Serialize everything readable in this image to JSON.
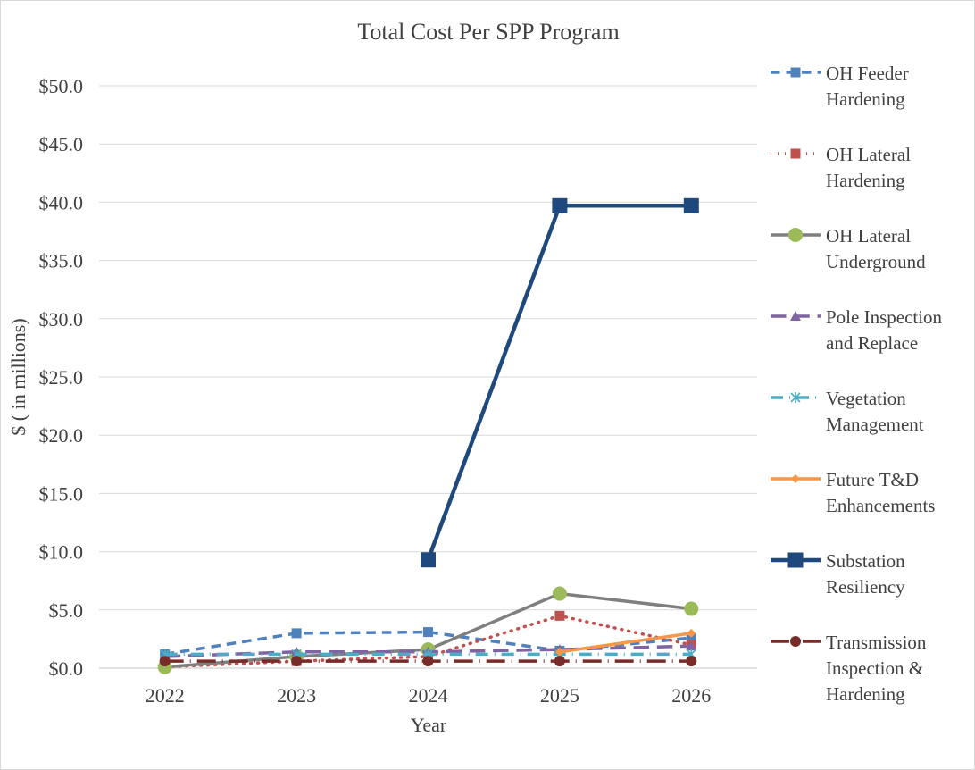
{
  "chart_data": {
    "type": "line",
    "title": "Total Cost Per SPP Program",
    "xlabel": "Year",
    "ylabel": "$ ( in millions)",
    "categories": [
      "2022",
      "2023",
      "2024",
      "2025",
      "2026"
    ],
    "ylim": [
      0,
      50
    ],
    "ytick_labels": [
      "$0.0",
      "$5.0",
      "$10.0",
      "$15.0",
      "$20.0",
      "$25.0",
      "$30.0",
      "$35.0",
      "$40.0",
      "$45.0",
      "$50.0"
    ],
    "grid": true,
    "legend_position": "right",
    "series": [
      {
        "name": "OH Feeder Hardening",
        "legend_lines": [
          "OH Feeder",
          "Hardening"
        ],
        "values": [
          1.2,
          3.0,
          3.1,
          1.5,
          2.6
        ],
        "color": "#4f81bd",
        "dash": "dash",
        "marker": "square"
      },
      {
        "name": "OH Lateral Hardening",
        "legend_lines": [
          "OH Lateral",
          "Hardening"
        ],
        "values": [
          0.1,
          0.6,
          1.0,
          4.5,
          2.0
        ],
        "color": "#c0504d",
        "dash": "dot",
        "marker": "square"
      },
      {
        "name": "OH Lateral Underground",
        "legend_lines": [
          "OH Lateral",
          "Underground"
        ],
        "values": [
          0.1,
          1.0,
          1.6,
          6.4,
          5.1
        ],
        "color": "#7f7f7f",
        "dash": "solid",
        "marker": "circle",
        "marker_color": "#9bbb59"
      },
      {
        "name": "Pole Inspection and Replace",
        "legend_lines": [
          "Pole Inspection",
          "and Replace"
        ],
        "values": [
          1.0,
          1.4,
          1.4,
          1.6,
          1.9
        ],
        "color": "#8064a2",
        "dash": "longdash",
        "marker": "triangle"
      },
      {
        "name": "Vegetation Management",
        "legend_lines": [
          "Vegetation",
          "Management"
        ],
        "values": [
          1.2,
          1.2,
          1.2,
          1.2,
          1.2
        ],
        "color": "#4bacc6",
        "dash": "dashdot",
        "marker": "star"
      },
      {
        "name": "Future T&D Enhancements",
        "legend_lines": [
          "Future T&D",
          "Enhancements"
        ],
        "values": [
          null,
          null,
          null,
          1.4,
          3.0
        ],
        "color": "#f79646",
        "dash": "solid",
        "marker": "diamond"
      },
      {
        "name": "Substation Resiliency",
        "legend_lines": [
          "Substation",
          "Resiliency"
        ],
        "values": [
          null,
          null,
          9.3,
          39.7,
          39.7
        ],
        "color": "#1f497d",
        "dash": "solid",
        "marker": "square_large"
      },
      {
        "name": "Transmission Inspection & Hardening",
        "legend_lines": [
          "Transmission",
          "Inspection &",
          "Hardening"
        ],
        "values": [
          0.6,
          0.6,
          0.6,
          0.6,
          0.6
        ],
        "color": "#772c2a",
        "dash": "longdashdot",
        "marker": "circle"
      }
    ]
  }
}
